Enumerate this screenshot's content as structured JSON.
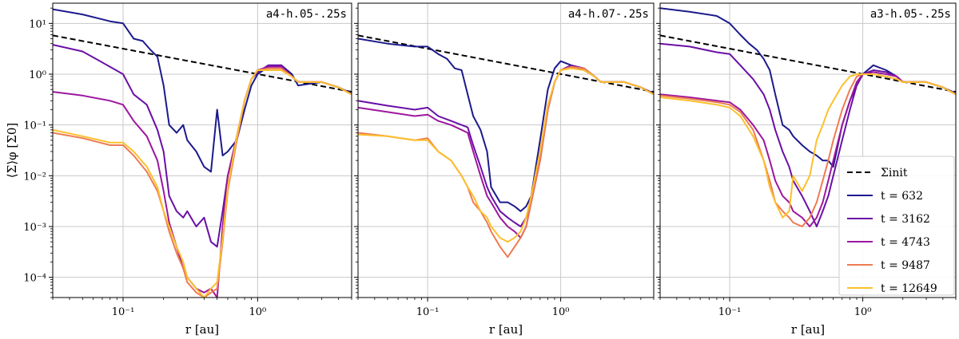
{
  "figure": {
    "ylabel": "⟨Σ⟩φ [Σ0]",
    "xlabel": "r [au]",
    "x_tick_labels": [
      "10⁻¹",
      "10⁰"
    ],
    "y_tick_labels": [
      "10⁻⁴",
      "10⁻³",
      "10⁻²",
      "10⁻¹",
      "10⁰",
      "10¹"
    ]
  },
  "legend": {
    "placement": "lower-right of third panel",
    "entries": [
      {
        "label": "Σinit",
        "color": "#000000",
        "style": "dashed"
      },
      {
        "label": "t = 632",
        "color": "#1c1a8c"
      },
      {
        "label": "t = 3162",
        "color": "#6a0fa6"
      },
      {
        "label": "t = 4743",
        "color": "#9c179e"
      },
      {
        "label": "t = 9487",
        "color": "#ee7b51"
      },
      {
        "label": "t = 12649",
        "color": "#fbc02d"
      }
    ]
  },
  "chart_data": [
    {
      "type": "line",
      "title": "a4-h.05-.25s",
      "xlabel": "r [au]",
      "ylabel": "⟨Σ⟩φ [Σ0]",
      "xscale": "log",
      "yscale": "log",
      "xlim": [
        0.03,
        5
      ],
      "ylim": [
        4e-05,
        25
      ],
      "grid": true,
      "series": [
        {
          "name": "Σinit",
          "style": "dashed",
          "x": [
            0.03,
            5
          ],
          "y": [
            5.8,
            0.45
          ]
        },
        {
          "name": "t = 632",
          "x": [
            0.03,
            0.05,
            0.08,
            0.1,
            0.12,
            0.14,
            0.16,
            0.18,
            0.2,
            0.22,
            0.25,
            0.28,
            0.3,
            0.35,
            0.4,
            0.45,
            0.5,
            0.55,
            0.6,
            0.7,
            0.8,
            0.9,
            1.0,
            1.2,
            1.5,
            1.8,
            2.0,
            3.0,
            4.0,
            5.0
          ],
          "y": [
            19,
            15,
            11,
            10,
            5,
            4.5,
            3,
            2.2,
            0.6,
            0.1,
            0.07,
            0.1,
            0.05,
            0.03,
            0.015,
            0.012,
            0.2,
            0.025,
            0.03,
            0.05,
            0.2,
            0.6,
            1.0,
            1.4,
            1.5,
            1.0,
            0.6,
            0.7,
            0.55,
            0.42
          ]
        },
        {
          "name": "t = 3162",
          "x": [
            0.03,
            0.05,
            0.08,
            0.1,
            0.12,
            0.15,
            0.18,
            0.2,
            0.22,
            0.25,
            0.28,
            0.3,
            0.35,
            0.4,
            0.45,
            0.5,
            0.55,
            0.6,
            0.7,
            0.8,
            0.9,
            1.0,
            1.2,
            1.5,
            1.8,
            2.0,
            3.0,
            4.0,
            5.0
          ],
          "y": [
            3.8,
            2.8,
            1.4,
            1.0,
            0.4,
            0.25,
            0.08,
            0.03,
            0.004,
            0.002,
            0.0015,
            0.002,
            0.001,
            0.0015,
            0.0005,
            0.0004,
            0.002,
            0.01,
            0.05,
            0.3,
            0.8,
            1.1,
            1.5,
            1.5,
            0.9,
            0.7,
            0.7,
            0.55,
            0.4
          ]
        },
        {
          "name": "t = 4743",
          "x": [
            0.03,
            0.05,
            0.08,
            0.1,
            0.12,
            0.15,
            0.18,
            0.2,
            0.22,
            0.25,
            0.28,
            0.3,
            0.35,
            0.4,
            0.45,
            0.5,
            0.55,
            0.6,
            0.7,
            0.8,
            0.9,
            1.0,
            1.2,
            1.5,
            1.8,
            2.0,
            3.0,
            4.0,
            5.0
          ],
          "y": [
            0.45,
            0.38,
            0.3,
            0.25,
            0.12,
            0.06,
            0.02,
            0.005,
            0.0012,
            0.0004,
            0.00015,
            0.0001,
            6e-05,
            5e-05,
            6e-05,
            4e-05,
            0.001,
            0.01,
            0.06,
            0.3,
            0.8,
            1.2,
            1.4,
            1.4,
            0.9,
            0.7,
            0.7,
            0.55,
            0.4
          ]
        },
        {
          "name": "t = 9487",
          "x": [
            0.03,
            0.05,
            0.08,
            0.1,
            0.12,
            0.15,
            0.18,
            0.2,
            0.22,
            0.25,
            0.28,
            0.3,
            0.35,
            0.4,
            0.45,
            0.5,
            0.55,
            0.6,
            0.7,
            0.8,
            0.9,
            1.0,
            1.2,
            1.5,
            1.8,
            2.0,
            3.0,
            4.0,
            5.0
          ],
          "y": [
            0.07,
            0.055,
            0.04,
            0.04,
            0.025,
            0.012,
            0.005,
            0.002,
            0.0008,
            0.0003,
            0.00015,
            8e-05,
            5e-05,
            4e-05,
            5e-05,
            6e-05,
            0.0005,
            0.005,
            0.05,
            0.3,
            0.8,
            1.2,
            1.3,
            1.3,
            0.9,
            0.7,
            0.7,
            0.55,
            0.4
          ]
        },
        {
          "name": "t = 12649",
          "x": [
            0.03,
            0.05,
            0.08,
            0.1,
            0.12,
            0.15,
            0.18,
            0.2,
            0.22,
            0.25,
            0.28,
            0.3,
            0.35,
            0.4,
            0.45,
            0.5,
            0.55,
            0.6,
            0.7,
            0.8,
            0.9,
            1.0,
            1.2,
            1.5,
            1.8,
            2.0,
            3.0,
            4.0,
            5.0
          ],
          "y": [
            0.08,
            0.06,
            0.045,
            0.045,
            0.03,
            0.015,
            0.006,
            0.002,
            0.001,
            0.0004,
            0.0002,
            0.0001,
            6e-05,
            4e-05,
            6e-05,
            8e-05,
            0.0006,
            0.006,
            0.06,
            0.3,
            0.8,
            1.2,
            1.2,
            1.2,
            0.9,
            0.7,
            0.7,
            0.55,
            0.4
          ]
        }
      ]
    },
    {
      "type": "line",
      "title": "a4-h.07-.25s",
      "xlabel": "r [au]",
      "xscale": "log",
      "yscale": "log",
      "xlim": [
        0.03,
        5
      ],
      "ylim": [
        4e-05,
        25
      ],
      "grid": true,
      "series": [
        {
          "name": "Σinit",
          "style": "dashed",
          "x": [
            0.03,
            5
          ],
          "y": [
            5.8,
            0.45
          ]
        },
        {
          "name": "t = 632",
          "x": [
            0.03,
            0.05,
            0.08,
            0.1,
            0.12,
            0.14,
            0.16,
            0.18,
            0.2,
            0.22,
            0.25,
            0.28,
            0.3,
            0.35,
            0.4,
            0.45,
            0.5,
            0.55,
            0.6,
            0.7,
            0.8,
            0.9,
            1.0,
            1.2,
            1.5,
            1.8,
            2.0,
            3.0,
            4.0,
            5.0
          ],
          "y": [
            5,
            4,
            3.5,
            3.5,
            2.5,
            2,
            1.3,
            1.2,
            0.4,
            0.15,
            0.08,
            0.03,
            0.006,
            0.003,
            0.003,
            0.0025,
            0.002,
            0.0025,
            0.004,
            0.05,
            0.5,
            1.3,
            1.8,
            1.5,
            1.2,
            0.9,
            0.7,
            0.7,
            0.55,
            0.42
          ]
        },
        {
          "name": "t = 3162",
          "x": [
            0.03,
            0.05,
            0.08,
            0.1,
            0.12,
            0.15,
            0.18,
            0.2,
            0.22,
            0.25,
            0.28,
            0.3,
            0.35,
            0.4,
            0.45,
            0.5,
            0.55,
            0.6,
            0.7,
            0.8,
            0.9,
            1.0,
            1.2,
            1.5,
            1.8,
            2.0,
            3.0,
            4.0,
            5.0
          ],
          "y": [
            0.3,
            0.24,
            0.2,
            0.22,
            0.15,
            0.12,
            0.1,
            0.09,
            0.04,
            0.015,
            0.006,
            0.004,
            0.002,
            0.0015,
            0.0012,
            0.001,
            0.0015,
            0.003,
            0.02,
            0.2,
            0.7,
            1.2,
            1.5,
            1.3,
            0.9,
            0.7,
            0.7,
            0.55,
            0.4
          ]
        },
        {
          "name": "t = 4743",
          "x": [
            0.03,
            0.05,
            0.08,
            0.1,
            0.12,
            0.15,
            0.18,
            0.2,
            0.22,
            0.25,
            0.28,
            0.3,
            0.35,
            0.4,
            0.45,
            0.5,
            0.55,
            0.6,
            0.7,
            0.8,
            0.9,
            1.0,
            1.2,
            1.5,
            1.8,
            2.0,
            3.0,
            4.0,
            5.0
          ],
          "y": [
            0.22,
            0.18,
            0.15,
            0.16,
            0.12,
            0.1,
            0.08,
            0.07,
            0.03,
            0.01,
            0.004,
            0.003,
            0.0015,
            0.001,
            0.0008,
            0.0006,
            0.001,
            0.003,
            0.02,
            0.2,
            0.7,
            1.2,
            1.4,
            1.3,
            0.9,
            0.7,
            0.7,
            0.55,
            0.4
          ]
        },
        {
          "name": "t = 9487",
          "x": [
            0.03,
            0.05,
            0.08,
            0.1,
            0.12,
            0.15,
            0.18,
            0.2,
            0.22,
            0.25,
            0.28,
            0.3,
            0.35,
            0.4,
            0.45,
            0.5,
            0.55,
            0.6,
            0.7,
            0.8,
            0.9,
            1.0,
            1.2,
            1.5,
            1.8,
            2.0,
            3.0,
            4.0,
            5.0
          ],
          "y": [
            0.07,
            0.06,
            0.05,
            0.055,
            0.03,
            0.02,
            0.01,
            0.006,
            0.003,
            0.002,
            0.0012,
            0.0008,
            0.0004,
            0.00025,
            0.0004,
            0.0006,
            0.001,
            0.003,
            0.02,
            0.2,
            0.7,
            1.2,
            1.4,
            1.3,
            0.9,
            0.7,
            0.7,
            0.55,
            0.4
          ]
        },
        {
          "name": "t = 12649",
          "x": [
            0.03,
            0.05,
            0.08,
            0.1,
            0.12,
            0.15,
            0.18,
            0.2,
            0.22,
            0.25,
            0.28,
            0.3,
            0.35,
            0.4,
            0.45,
            0.5,
            0.55,
            0.6,
            0.7,
            0.8,
            0.9,
            1.0,
            1.2,
            1.5,
            1.8,
            2.0,
            3.0,
            4.0,
            5.0
          ],
          "y": [
            0.065,
            0.06,
            0.05,
            0.05,
            0.03,
            0.02,
            0.01,
            0.006,
            0.004,
            0.002,
            0.0015,
            0.001,
            0.0006,
            0.0005,
            0.0006,
            0.0008,
            0.0015,
            0.004,
            0.03,
            0.25,
            0.7,
            1.2,
            1.3,
            1.2,
            0.9,
            0.7,
            0.7,
            0.55,
            0.4
          ]
        }
      ]
    },
    {
      "type": "line",
      "title": "a3-h.05-.25s",
      "xlabel": "r [au]",
      "xscale": "log",
      "yscale": "log",
      "xlim": [
        0.03,
        5
      ],
      "ylim": [
        4e-05,
        25
      ],
      "grid": true,
      "series": [
        {
          "name": "Σinit",
          "style": "dashed",
          "x": [
            0.03,
            5
          ],
          "y": [
            5.8,
            0.45
          ]
        },
        {
          "name": "t = 632",
          "x": [
            0.03,
            0.05,
            0.08,
            0.1,
            0.12,
            0.14,
            0.16,
            0.18,
            0.2,
            0.22,
            0.25,
            0.28,
            0.3,
            0.35,
            0.4,
            0.45,
            0.5,
            0.55,
            0.6,
            0.7,
            0.8,
            0.9,
            1.0,
            1.2,
            1.5,
            1.8,
            2.0,
            3.0,
            4.0,
            5.0
          ],
          "y": [
            20,
            17,
            14,
            10,
            6,
            4,
            3,
            2,
            1.2,
            0.4,
            0.1,
            0.08,
            0.06,
            0.04,
            0.03,
            0.025,
            0.02,
            0.02,
            0.015,
            0.1,
            0.3,
            0.6,
            1.0,
            1.5,
            1.2,
            0.9,
            0.7,
            0.7,
            0.55,
            0.42
          ]
        },
        {
          "name": "t = 3162",
          "x": [
            0.03,
            0.05,
            0.08,
            0.1,
            0.12,
            0.15,
            0.18,
            0.2,
            0.22,
            0.25,
            0.28,
            0.3,
            0.35,
            0.4,
            0.45,
            0.5,
            0.55,
            0.6,
            0.7,
            0.8,
            0.9,
            1.0,
            1.2,
            1.5,
            1.8,
            2.0,
            3.0,
            4.0,
            5.0
          ],
          "y": [
            4,
            3.5,
            2.7,
            2.5,
            1.5,
            0.8,
            0.4,
            0.2,
            0.08,
            0.03,
            0.015,
            0.008,
            0.004,
            0.002,
            0.001,
            0.002,
            0.004,
            0.01,
            0.05,
            0.2,
            0.6,
            1.0,
            1.2,
            1.1,
            0.9,
            0.7,
            0.7,
            0.55,
            0.4
          ]
        },
        {
          "name": "t = 4743",
          "x": [
            0.03,
            0.05,
            0.08,
            0.1,
            0.12,
            0.15,
            0.18,
            0.2,
            0.22,
            0.25,
            0.28,
            0.3,
            0.35,
            0.4,
            0.45,
            0.5,
            0.55,
            0.6,
            0.7,
            0.8,
            0.9,
            1.0,
            1.2,
            1.5,
            1.8,
            2.0,
            3.0,
            4.0,
            5.0
          ],
          "y": [
            0.4,
            0.35,
            0.3,
            0.28,
            0.2,
            0.1,
            0.05,
            0.02,
            0.008,
            0.004,
            0.003,
            0.002,
            0.0015,
            0.001,
            0.0015,
            0.003,
            0.008,
            0.02,
            0.1,
            0.3,
            0.7,
            1.0,
            1.1,
            1.0,
            0.9,
            0.7,
            0.7,
            0.55,
            0.4
          ]
        },
        {
          "name": "t = 9487",
          "x": [
            0.03,
            0.05,
            0.08,
            0.1,
            0.12,
            0.15,
            0.18,
            0.2,
            0.22,
            0.25,
            0.28,
            0.3,
            0.35,
            0.4,
            0.45,
            0.5,
            0.55,
            0.6,
            0.7,
            0.8,
            0.9,
            1.0,
            1.2,
            1.5,
            1.8,
            2.0,
            3.0,
            4.0,
            5.0
          ],
          "y": [
            0.38,
            0.33,
            0.28,
            0.25,
            0.18,
            0.08,
            0.02,
            0.008,
            0.003,
            0.002,
            0.0015,
            0.0012,
            0.001,
            0.0015,
            0.003,
            0.008,
            0.02,
            0.05,
            0.2,
            0.5,
            0.9,
            1.0,
            1.0,
            0.9,
            0.8,
            0.7,
            0.7,
            0.55,
            0.4
          ]
        },
        {
          "name": "t = 12649",
          "x": [
            0.03,
            0.05,
            0.08,
            0.1,
            0.12,
            0.15,
            0.18,
            0.2,
            0.22,
            0.25,
            0.28,
            0.3,
            0.35,
            0.4,
            0.45,
            0.5,
            0.55,
            0.6,
            0.7,
            0.8,
            0.9,
            1.0,
            1.2,
            1.5,
            1.8,
            2.0,
            3.0,
            4.0,
            5.0
          ],
          "y": [
            0.35,
            0.3,
            0.25,
            0.22,
            0.15,
            0.06,
            0.02,
            0.006,
            0.003,
            0.0015,
            0.002,
            0.01,
            0.005,
            0.01,
            0.05,
            0.1,
            0.2,
            0.3,
            0.6,
            0.9,
            1.0,
            1.0,
            1.0,
            0.9,
            0.8,
            0.7,
            0.7,
            0.55,
            0.4
          ]
        }
      ]
    }
  ]
}
